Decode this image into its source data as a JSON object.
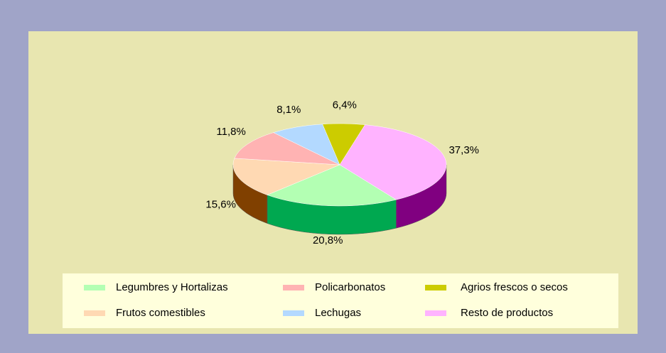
{
  "chart_data": {
    "type": "pie",
    "categories": [
      "Legumbres y Hortalizas",
      "Frutos comestibles",
      "Policarbonatos",
      "Lechugas",
      "Agrios frescos o secos",
      "Resto de productos"
    ],
    "values": [
      20.8,
      15.6,
      11.8,
      8.1,
      6.4,
      37.3
    ],
    "value_labels": [
      "20,8%",
      "15,6%",
      "11,8%",
      "8,1%",
      "6,4%",
      "37,3%"
    ],
    "colors": [
      "#b3ffb3",
      "#ffd9b3",
      "#ffb3b3",
      "#b3d9ff",
      "#cccc00",
      "#ffb3ff"
    ],
    "side_colors": [
      "#00a850",
      "#804000",
      "#ff8080",
      "#80b3ff",
      "#999900",
      "#800080"
    ],
    "legend": "bottom"
  }
}
